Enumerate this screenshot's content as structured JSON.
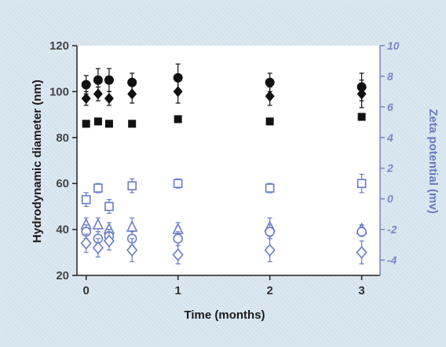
{
  "chart_data": {
    "type": "scatter",
    "xlabel": "Time (months)",
    "ylabel": "Hydrodynamic diameter (nm)",
    "y2label": "Zeta potential (mv)",
    "xlim": [
      -0.1,
      3.2
    ],
    "ylim": [
      20,
      120
    ],
    "y2lim": [
      -5,
      10
    ],
    "x_ticks": [
      "0",
      "1",
      "2",
      "3"
    ],
    "y_ticks": [
      "20",
      "40",
      "60",
      "80",
      "100",
      "120"
    ],
    "y2_ticks": [
      "-4",
      "-2",
      "0",
      "2",
      "4",
      "6",
      "8",
      "10"
    ],
    "colors": {
      "black": "#111111",
      "blue": "#6a7cc6",
      "right_axis": "#7a86c2"
    },
    "series": [
      {
        "axis": "left",
        "marker": "filled-circle",
        "points": [
          {
            "x": 0,
            "y": 103,
            "err": 4
          },
          {
            "x": 0.13,
            "y": 105,
            "err": 5
          },
          {
            "x": 0.25,
            "y": 105,
            "err": 5
          },
          {
            "x": 0.5,
            "y": 104,
            "err": 4
          },
          {
            "x": 1,
            "y": 106,
            "err": 6
          },
          {
            "x": 2,
            "y": 104,
            "err": 4
          },
          {
            "x": 3,
            "y": 102,
            "err": 6
          }
        ]
      },
      {
        "axis": "left",
        "marker": "filled-diamond",
        "points": [
          {
            "x": 0,
            "y": 97,
            "err": 3
          },
          {
            "x": 0.13,
            "y": 99,
            "err": 3
          },
          {
            "x": 0.25,
            "y": 97,
            "err": 3
          },
          {
            "x": 0.5,
            "y": 99,
            "err": 4
          },
          {
            "x": 1,
            "y": 100,
            "err": 5
          },
          {
            "x": 2,
            "y": 98,
            "err": 4
          },
          {
            "x": 3,
            "y": 99,
            "err": 6
          }
        ]
      },
      {
        "axis": "left",
        "marker": "filled-square",
        "points": [
          {
            "x": 0,
            "y": 86,
            "err": 0
          },
          {
            "x": 0.13,
            "y": 87,
            "err": 0
          },
          {
            "x": 0.25,
            "y": 86,
            "err": 0
          },
          {
            "x": 0.5,
            "y": 86,
            "err": 0
          },
          {
            "x": 1,
            "y": 88,
            "err": 0
          },
          {
            "x": 2,
            "y": 87,
            "err": 0
          },
          {
            "x": 3,
            "y": 89,
            "err": 0
          }
        ]
      },
      {
        "axis": "left",
        "marker": "open-square",
        "points": [
          {
            "x": 0,
            "y": 53,
            "err": 3
          },
          {
            "x": 0.13,
            "y": 58,
            "err": 2
          },
          {
            "x": 0.25,
            "y": 50,
            "err": 3
          },
          {
            "x": 0.5,
            "y": 59,
            "err": 3
          },
          {
            "x": 1,
            "y": 60,
            "err": 2
          },
          {
            "x": 2,
            "y": 58,
            "err": 2
          },
          {
            "x": 3,
            "y": 60,
            "err": 4
          }
        ]
      },
      {
        "axis": "left",
        "marker": "open-triangle",
        "points": [
          {
            "x": 0,
            "y": 42,
            "err": 3
          },
          {
            "x": 0.13,
            "y": 42,
            "err": 3
          },
          {
            "x": 0.25,
            "y": 40,
            "err": 3
          },
          {
            "x": 0.5,
            "y": 41,
            "err": 4
          },
          {
            "x": 1,
            "y": 40,
            "err": 3
          },
          {
            "x": 2,
            "y": 41,
            "err": 4
          },
          {
            "x": 3,
            "y": 40,
            "err": 2
          }
        ]
      },
      {
        "axis": "left",
        "marker": "open-circle",
        "points": [
          {
            "x": 0,
            "y": 39,
            "err": 3
          },
          {
            "x": 0.13,
            "y": 36,
            "err": 3
          },
          {
            "x": 0.25,
            "y": 37,
            "err": 3
          },
          {
            "x": 0.5,
            "y": 36,
            "err": 3
          },
          {
            "x": 1,
            "y": 36,
            "err": 3
          },
          {
            "x": 2,
            "y": 39,
            "err": 3
          },
          {
            "x": 3,
            "y": 39,
            "err": 2
          }
        ]
      },
      {
        "axis": "left",
        "marker": "open-diamond",
        "points": [
          {
            "x": 0,
            "y": 34,
            "err": 4
          },
          {
            "x": 0.13,
            "y": 32,
            "err": 4
          },
          {
            "x": 0.25,
            "y": 35,
            "err": 4
          },
          {
            "x": 0.5,
            "y": 31,
            "err": 5
          },
          {
            "x": 1,
            "y": 29,
            "err": 4
          },
          {
            "x": 2,
            "y": 31,
            "err": 5
          },
          {
            "x": 3,
            "y": 30,
            "err": 5
          }
        ]
      }
    ]
  }
}
